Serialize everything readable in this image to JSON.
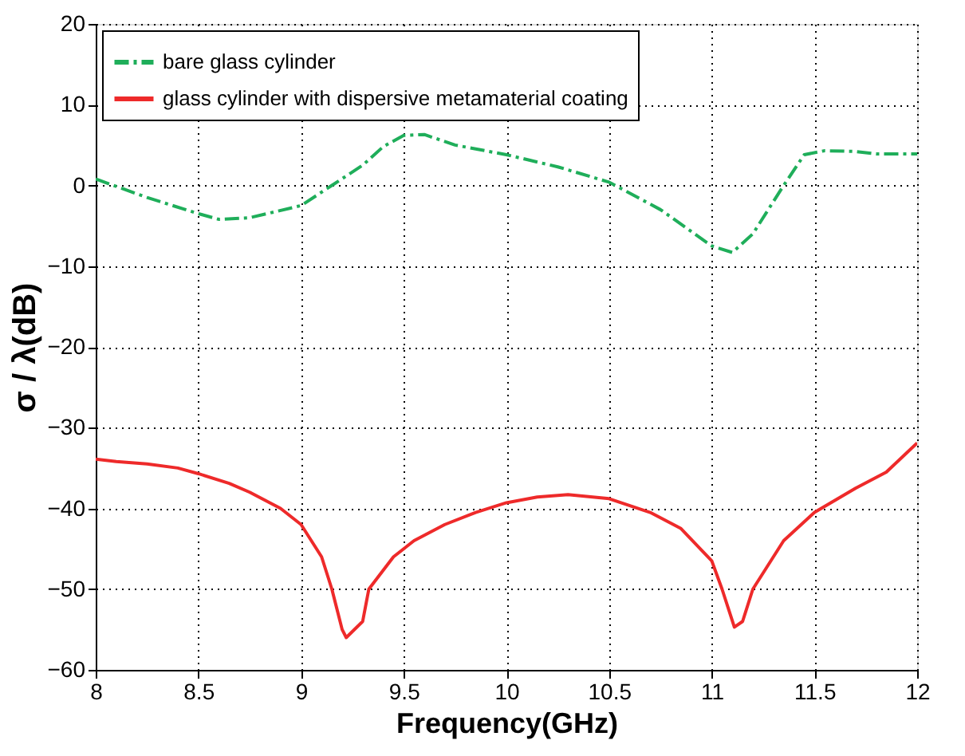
{
  "chart_data": {
    "type": "line",
    "xlabel": "Frequency(GHz)",
    "ylabel": "σ / λ(dB)",
    "xlim": [
      8,
      12
    ],
    "ylim": [
      -60,
      20
    ],
    "xticks": [
      8,
      8.5,
      9,
      9.5,
      10,
      10.5,
      11,
      11.5,
      12
    ],
    "yticks": [
      -60,
      -50,
      -40,
      -30,
      -20,
      -10,
      0,
      10,
      20
    ],
    "grid": true,
    "legend": "top left",
    "marker": "none",
    "series": [
      {
        "name": "bare glass cylinder",
        "color": "#1fae5a",
        "line_style": "dashed",
        "x": [
          8,
          8.25,
          8.5,
          8.6,
          8.75,
          9,
          9.15,
          9.3,
          9.4,
          9.5,
          9.6,
          9.75,
          10,
          10.25,
          10.5,
          10.75,
          11,
          11.1,
          11.2,
          11.35,
          11.45,
          11.55,
          11.7,
          11.8,
          12
        ],
        "values": [
          0.8,
          -1.5,
          -3.5,
          -4.2,
          -4,
          -2.5,
          0,
          2.5,
          4.8,
          6.2,
          6.3,
          5,
          3.8,
          2.3,
          0.4,
          -3,
          -7.5,
          -8.3,
          -6,
          0,
          3.8,
          4.3,
          4.2,
          3.9,
          3.9
        ]
      },
      {
        "name": "glass cylinder with dispersive metamaterial coating",
        "color": "#ee2a2a",
        "line_style": "solid",
        "x": [
          8,
          8.1,
          8.25,
          8.4,
          8.5,
          8.65,
          8.75,
          8.9,
          9,
          9.1,
          9.15,
          9.2,
          9.22,
          9.3,
          9.33,
          9.45,
          9.55,
          9.7,
          9.85,
          10,
          10.15,
          10.3,
          10.5,
          10.7,
          10.85,
          11,
          11.05,
          11.11,
          11.15,
          11.2,
          11.35,
          11.5,
          11.7,
          11.85,
          12
        ],
        "values": [
          -33.9,
          -34.2,
          -34.5,
          -35,
          -35.7,
          -36.9,
          -38,
          -40,
          -42,
          -46,
          -50,
          -55,
          -56,
          -54,
          -50,
          -46,
          -44,
          -42,
          -40.5,
          -39.3,
          -38.6,
          -38.3,
          -38.8,
          -40.5,
          -42.5,
          -46.5,
          -50,
          -54.7,
          -54,
          -50,
          -44,
          -40.5,
          -37.5,
          -35.5,
          -31.9
        ]
      }
    ]
  }
}
